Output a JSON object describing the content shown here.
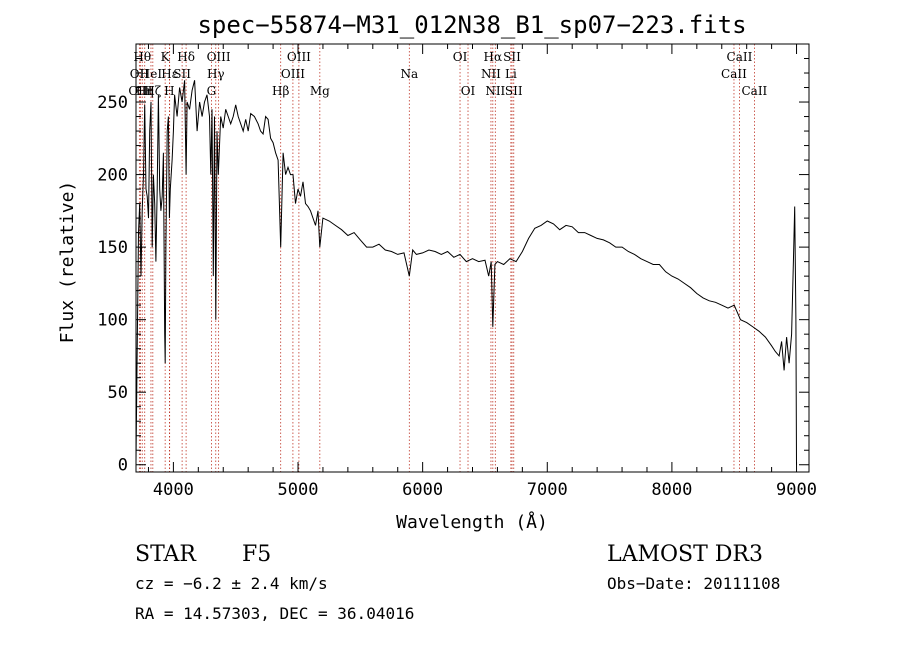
{
  "chart_data": {
    "type": "line",
    "title": "spec−55874−M31_012N38_B1_sp07−223.fits",
    "xlabel": "Wavelength (Å)",
    "ylabel": "Flux (relative)",
    "xlim": [
      3700,
      9100
    ],
    "ylim": [
      -5,
      290
    ],
    "xticks": [
      4000,
      5000,
      6000,
      7000,
      8000,
      9000
    ],
    "yticks": [
      0,
      50,
      100,
      150,
      200,
      250
    ],
    "series": [
      {
        "name": "spectrum",
        "x": [
          3700,
          3710,
          3720,
          3730,
          3740,
          3750,
          3760,
          3770,
          3780,
          3790,
          3800,
          3810,
          3820,
          3830,
          3840,
          3850,
          3860,
          3870,
          3880,
          3890,
          3900,
          3910,
          3920,
          3930,
          3934,
          3940,
          3950,
          3960,
          3968,
          3975,
          3990,
          4000,
          4010,
          4030,
          4050,
          4070,
          4090,
          4102,
          4110,
          4130,
          4150,
          4170,
          4190,
          4210,
          4230,
          4250,
          4270,
          4290,
          4300,
          4310,
          4320,
          4330,
          4340,
          4350,
          4360,
          4380,
          4400,
          4420,
          4440,
          4460,
          4480,
          4500,
          4520,
          4540,
          4560,
          4580,
          4600,
          4620,
          4650,
          4680,
          4700,
          4720,
          4740,
          4760,
          4780,
          4800,
          4820,
          4840,
          4861,
          4880,
          4900,
          4920,
          4940,
          4960,
          4980,
          5000,
          5020,
          5040,
          5060,
          5080,
          5100,
          5120,
          5140,
          5160,
          5175,
          5200,
          5250,
          5300,
          5350,
          5400,
          5450,
          5500,
          5550,
          5600,
          5650,
          5700,
          5750,
          5800,
          5850,
          5893,
          5920,
          5950,
          6000,
          6050,
          6100,
          6150,
          6200,
          6250,
          6300,
          6350,
          6400,
          6450,
          6500,
          6530,
          6550,
          6563,
          6580,
          6600,
          6650,
          6700,
          6750,
          6800,
          6850,
          6900,
          6950,
          7000,
          7050,
          7100,
          7150,
          7200,
          7250,
          7300,
          7350,
          7400,
          7450,
          7500,
          7550,
          7600,
          7650,
          7700,
          7750,
          7800,
          7850,
          7900,
          7950,
          8000,
          8050,
          8100,
          8150,
          8200,
          8250,
          8300,
          8350,
          8400,
          8450,
          8500,
          8550,
          8600,
          8650,
          8700,
          8750,
          8800,
          8830,
          8860,
          8880,
          8900,
          8920,
          8940,
          8960,
          8975,
          8985,
          8995,
          9000
        ],
        "values": [
          2,
          80,
          160,
          180,
          130,
          175,
          200,
          248,
          190,
          185,
          170,
          230,
          250,
          150,
          200,
          180,
          140,
          190,
          255,
          190,
          175,
          185,
          215,
          90,
          70,
          150,
          230,
          240,
          170,
          190,
          210,
          230,
          255,
          240,
          260,
          250,
          265,
          200,
          250,
          245,
          258,
          265,
          230,
          250,
          240,
          250,
          255,
          240,
          200,
          245,
          130,
          240,
          100,
          230,
          200,
          240,
          232,
          245,
          240,
          235,
          240,
          248,
          240,
          235,
          230,
          238,
          230,
          242,
          240,
          235,
          230,
          228,
          240,
          238,
          225,
          222,
          215,
          210,
          150,
          215,
          200,
          205,
          200,
          200,
          180,
          190,
          185,
          195,
          180,
          178,
          175,
          170,
          165,
          175,
          150,
          170,
          168,
          165,
          162,
          158,
          160,
          155,
          150,
          150,
          152,
          148,
          147,
          145,
          146,
          130,
          148,
          145,
          146,
          148,
          147,
          145,
          147,
          143,
          145,
          140,
          142,
          140,
          141,
          130,
          140,
          95,
          138,
          140,
          138,
          142,
          140,
          147,
          156,
          163,
          165,
          168,
          166,
          162,
          165,
          164,
          160,
          160,
          158,
          156,
          155,
          153,
          150,
          150,
          147,
          145,
          142,
          140,
          138,
          138,
          133,
          130,
          128,
          125,
          122,
          118,
          115,
          113,
          112,
          110,
          108,
          110,
          100,
          98,
          95,
          92,
          88,
          82,
          78,
          75,
          85,
          65,
          88,
          70,
          90,
          140,
          178,
          100,
          0
        ]
      }
    ],
    "spectral_lines": [
      {
        "label": "Hθ",
        "wavelength": 3750,
        "row": 0
      },
      {
        "label": "OII",
        "wavelength": 3727,
        "row": 1
      },
      {
        "label": "OIII",
        "wavelength": 3735,
        "row": 2
      },
      {
        "label": "Hη",
        "wavelength": 3770,
        "row": 2
      },
      {
        "label": "HeI",
        "wavelength": 3820,
        "row": 1
      },
      {
        "label": "Hζ",
        "wavelength": 3835,
        "row": 2
      },
      {
        "label": "K",
        "wavelength": 3934,
        "row": 0
      },
      {
        "label": "H",
        "wavelength": 3968,
        "row": 2
      },
      {
        "label": "Hε",
        "wavelength": 3970,
        "row": 1
      },
      {
        "label": "Hδ",
        "wavelength": 4102,
        "row": 0
      },
      {
        "label": "SII",
        "wavelength": 4070,
        "row": 1
      },
      {
        "label": "OIII",
        "wavelength": 4363,
        "row": 0
      },
      {
        "label": "Hγ",
        "wavelength": 4340,
        "row": 1
      },
      {
        "label": "G",
        "wavelength": 4305,
        "row": 2
      },
      {
        "label": "Hβ",
        "wavelength": 4861,
        "row": 2
      },
      {
        "label": "OIII",
        "wavelength": 5007,
        "row": 0
      },
      {
        "label": "OIII",
        "wavelength": 4959,
        "row": 1
      },
      {
        "label": "Mg",
        "wavelength": 5175,
        "row": 2
      },
      {
        "label": "Na",
        "wavelength": 5893,
        "row": 1
      },
      {
        "label": "OI",
        "wavelength": 6300,
        "row": 0
      },
      {
        "label": "OI",
        "wavelength": 6364,
        "row": 2
      },
      {
        "label": "Hα",
        "wavelength": 6563,
        "row": 0
      },
      {
        "label": "NII",
        "wavelength": 6548,
        "row": 1
      },
      {
        "label": "NII",
        "wavelength": 6583,
        "row": 2
      },
      {
        "label": "SII",
        "wavelength": 6717,
        "row": 0
      },
      {
        "label": "Li",
        "wavelength": 6708,
        "row": 1
      },
      {
        "label": "SII",
        "wavelength": 6731,
        "row": 2
      },
      {
        "label": "CaII",
        "wavelength": 8542,
        "row": 0
      },
      {
        "label": "CaII",
        "wavelength": 8498,
        "row": 1
      },
      {
        "label": "CaII",
        "wavelength": 8662,
        "row": 2
      }
    ]
  },
  "info": {
    "class": "STAR",
    "subclass": "F5",
    "survey": "LAMOST DR3",
    "cz": "cz = −6.2 ± 2.4 km/s",
    "obs_date": "Obs−Date: 20111108",
    "coords": "RA =  14.57303, DEC =  36.04016"
  }
}
